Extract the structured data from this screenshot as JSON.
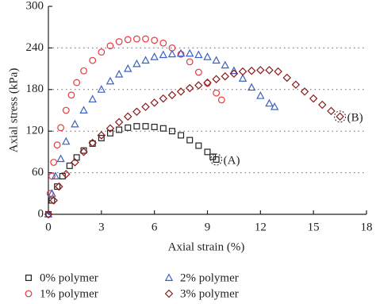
{
  "chart_data": {
    "type": "scatter",
    "x_label": "Axial strain (%)",
    "y_label": "Axial stress (kPa)",
    "xlim": [
      0,
      18
    ],
    "xticks": [
      0,
      3,
      6,
      9,
      12,
      15,
      18
    ],
    "ylim": [
      0,
      300
    ],
    "yticks": [
      0,
      60,
      120,
      180,
      240,
      300
    ],
    "grid": true,
    "legend": "bottom",
    "series": [
      {
        "name": "0% polymer",
        "marker": "square",
        "color": "#222222",
        "x": [
          0,
          0.2,
          0.5,
          0.8,
          1.2,
          1.6,
          2,
          2.5,
          3,
          3.5,
          4,
          4.5,
          5,
          5.5,
          6,
          6.5,
          7,
          7.5,
          8,
          8.5,
          9,
          9.3,
          9.5
        ],
        "values": [
          0,
          20,
          40,
          55,
          70,
          82,
          92,
          102,
          110,
          117,
          122,
          125,
          127,
          127,
          126,
          124,
          120,
          114,
          107,
          99,
          90,
          83,
          79
        ]
      },
      {
        "name": "1% polymer",
        "marker": "circle",
        "color": "#e8383d",
        "x": [
          0,
          0.1,
          0.2,
          0.3,
          0.5,
          0.7,
          1,
          1.3,
          1.6,
          2,
          2.5,
          3,
          3.5,
          4,
          4.5,
          5,
          5.5,
          6,
          6.5,
          7,
          7.5,
          8,
          8.5,
          9,
          9.5,
          9.8
        ],
        "values": [
          0,
          30,
          55,
          75,
          100,
          125,
          150,
          172,
          190,
          207,
          222,
          234,
          243,
          249,
          252,
          253,
          253,
          251,
          247,
          240,
          231,
          220,
          205,
          189,
          175,
          165
        ]
      },
      {
        "name": "2% polymer",
        "marker": "triangle",
        "color": "#3a62c4",
        "x": [
          0,
          0.2,
          0.4,
          0.7,
          1,
          1.5,
          2,
          2.5,
          3,
          3.5,
          4,
          4.5,
          5,
          5.5,
          6,
          6.5,
          7,
          7.5,
          8,
          8.5,
          9,
          9.5,
          10,
          10.5,
          11,
          11.5,
          12,
          12.5,
          12.8
        ],
        "values": [
          0,
          30,
          55,
          80,
          105,
          130,
          150,
          166,
          180,
          192,
          202,
          210,
          217,
          222,
          227,
          230,
          231,
          232,
          232,
          230,
          227,
          222,
          215,
          207,
          196,
          183,
          171,
          160,
          155
        ]
      },
      {
        "name": "3% polymer",
        "marker": "diamond",
        "color": "#8b1a1a",
        "x": [
          0,
          0.3,
          0.6,
          1,
          1.5,
          2,
          2.5,
          3,
          3.5,
          4,
          4.5,
          5,
          5.5,
          6,
          6.5,
          7,
          7.5,
          8,
          8.5,
          9,
          9.5,
          10,
          10.5,
          11,
          11.5,
          12,
          12.5,
          13,
          13.5,
          14,
          14.5,
          15,
          15.5,
          16,
          16.5
        ],
        "values": [
          0,
          20,
          40,
          58,
          75,
          90,
          103,
          114,
          124,
          133,
          141,
          148,
          155,
          161,
          167,
          172,
          177,
          182,
          186,
          190,
          195,
          199,
          203,
          206,
          207,
          208,
          208,
          206,
          197,
          187,
          177,
          167,
          158,
          149,
          141
        ]
      }
    ],
    "annotations": [
      {
        "text": "(A)",
        "x": 9.5,
        "y": 79
      },
      {
        "text": "(B)",
        "x": 16.5,
        "y": 141
      }
    ]
  }
}
